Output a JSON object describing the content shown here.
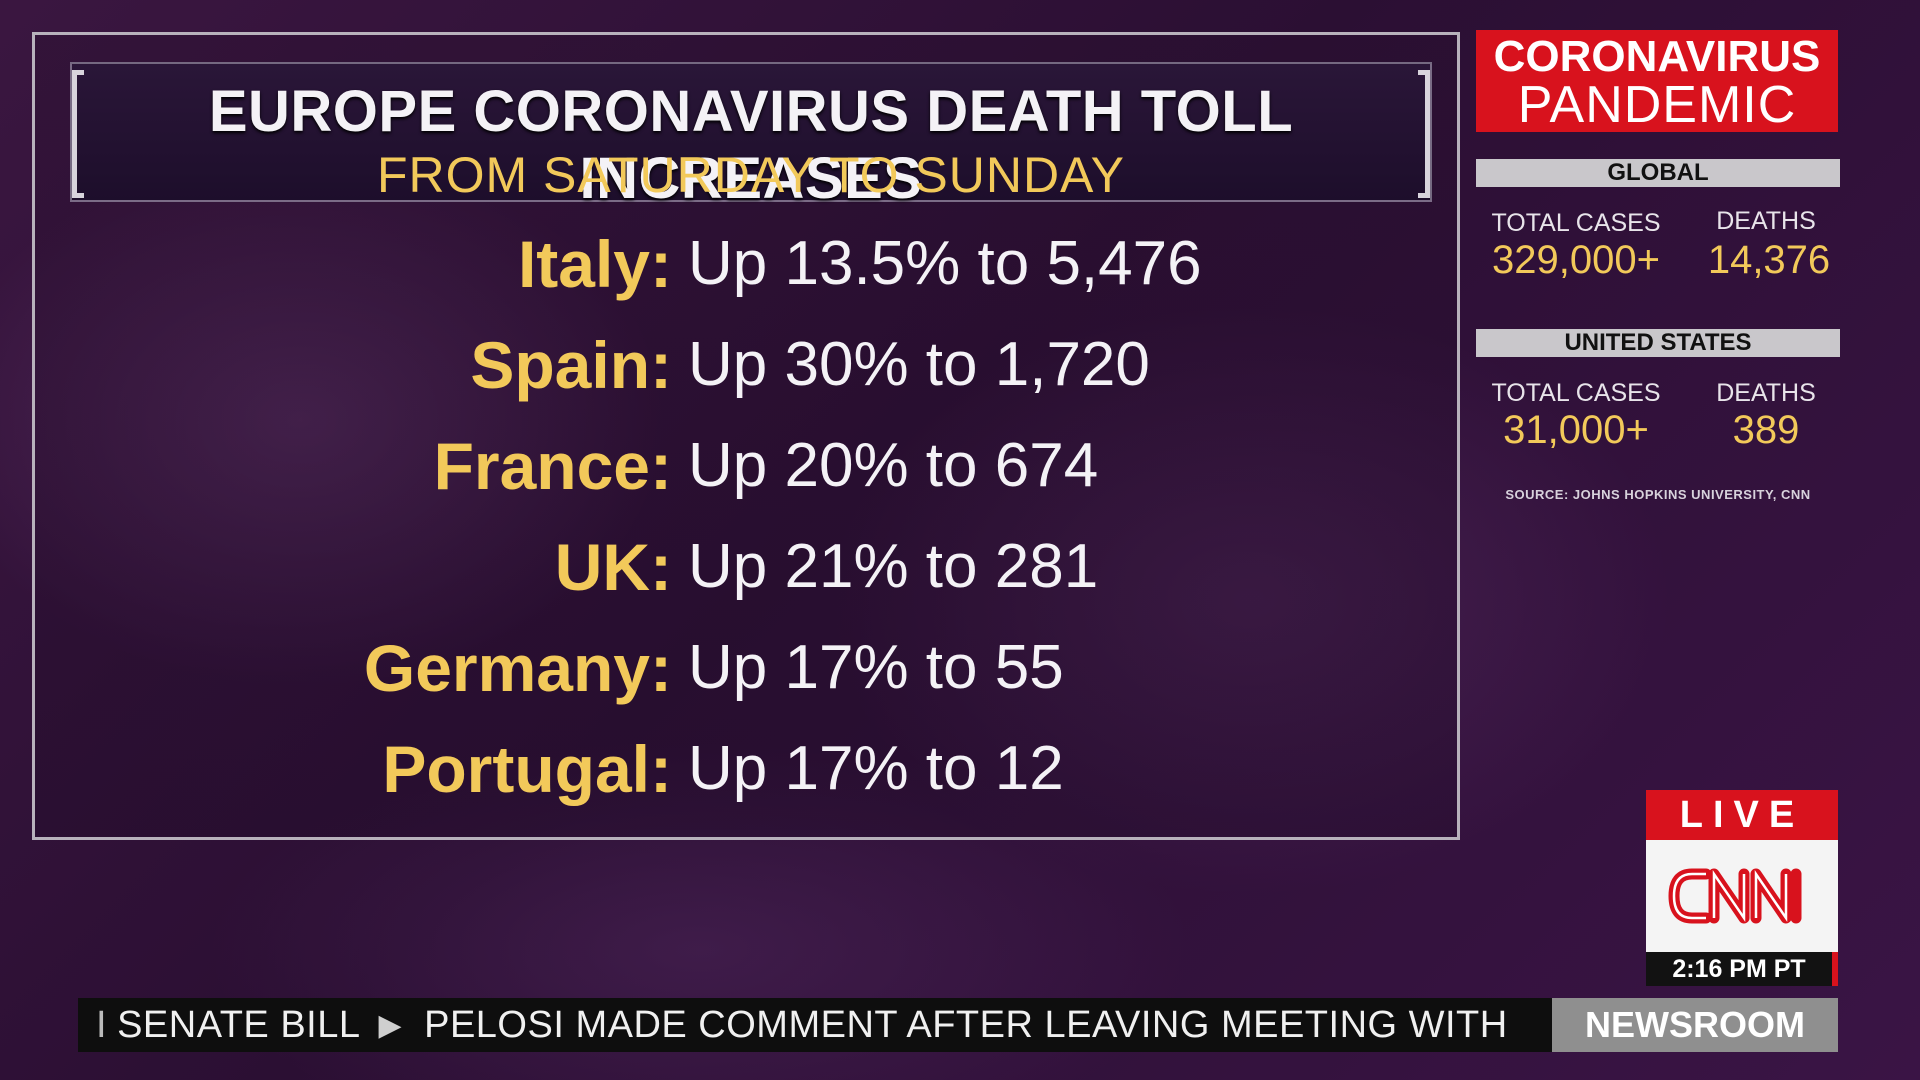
{
  "header": {
    "headline": "EUROPE CORONAVIRUS DEATH TOLL INCREASES",
    "subline": "FROM SATURDAY TO SUNDAY"
  },
  "rows": [
    {
      "country": "Italy:",
      "change": "Up 13.5% to 5,476"
    },
    {
      "country": "Spain:",
      "change": "Up 30% to 1,720"
    },
    {
      "country": "France:",
      "change": "Up 20% to 674"
    },
    {
      "country": "UK:",
      "change": "Up 21% to 281"
    },
    {
      "country": "Germany:",
      "change": "Up 17% to 55"
    },
    {
      "country": "Portugal:",
      "change": "Up 17% to 12"
    }
  ],
  "panel": {
    "title_line1": "CORONAVIRUS",
    "title_line2": "PANDEMIC",
    "global": {
      "label": "GLOBAL",
      "cases_label": "TOTAL CASES",
      "cases_value": "329,000+",
      "deaths_label": "DEATHS",
      "deaths_value": "14,376"
    },
    "us": {
      "label": "UNITED STATES",
      "cases_label": "TOTAL CASES",
      "cases_value": "31,000+",
      "deaths_label": "DEATHS",
      "deaths_value": "389"
    },
    "source": "SOURCE: JOHNS HOPKINS UNIVERSITY, CNN"
  },
  "bug": {
    "live": "LIVE",
    "network": "CNN",
    "time": "2:16 PM PT"
  },
  "ticker": {
    "prefix": "I",
    "item1": "SENATE BILL",
    "separator_icon": "play-triangle-icon",
    "item2": "PELOSI MADE COMMENT AFTER LEAVING MEETING WITH",
    "show": "NEWSROOM"
  },
  "colors": {
    "accent_gold": "#f2c95a",
    "cnn_red": "#d8121d",
    "background": "#2b0f33"
  }
}
